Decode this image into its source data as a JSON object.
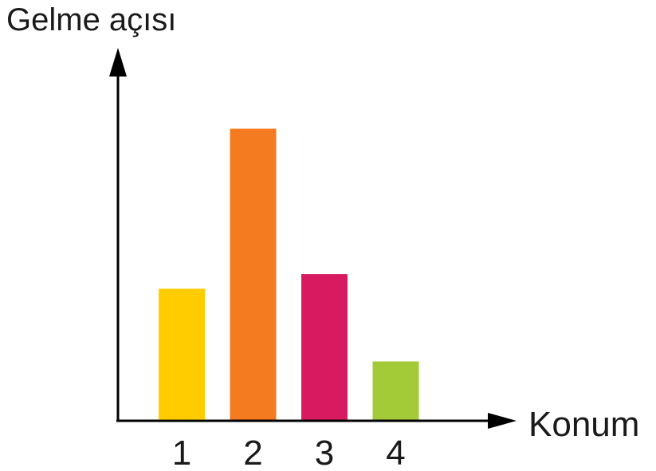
{
  "chart_data": {
    "type": "bar",
    "title": "",
    "ylabel": "Gelme açısı",
    "xlabel": "Konum",
    "categories": [
      "1",
      "2",
      "3",
      "4"
    ],
    "values": [
      4.5,
      10,
      5,
      2
    ],
    "ylim": [
      0,
      12
    ],
    "grid": false,
    "colors": [
      "#FFCC00",
      "#F47B20",
      "#D81B60",
      "#A3CB38"
    ]
  }
}
